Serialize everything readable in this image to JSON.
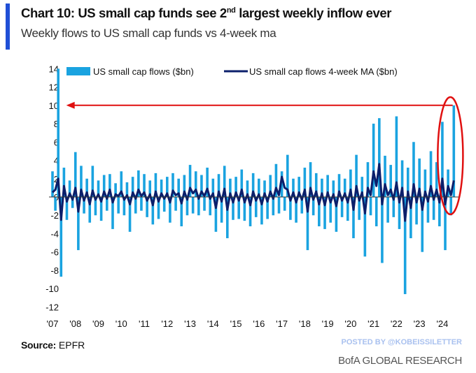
{
  "header": {
    "title_main": "Chart 10: US small cap funds see 2",
    "title_sup": "nd",
    "title_rest": " largest weekly inflow ever",
    "subtitle": "Weekly flows to US small cap funds vs 4-week ma"
  },
  "footer": {
    "source_label": "Source:",
    "source_value": " EPFR",
    "posted_by": "POSTED BY @KOBEISSILETTER",
    "brand": "BofA GLOBAL RESEARCH"
  },
  "colors": {
    "flows": "#1aa3e0",
    "ma": "#0b1f6b",
    "annotation": "#e01010",
    "accent": "#1f4fd6"
  },
  "chart_data": {
    "type": "bar",
    "title": "Chart 10: US small cap funds see 2nd largest weekly inflow ever",
    "subtitle": "Weekly flows to US small cap funds vs 4-week ma",
    "xlabel": "",
    "ylabel": "",
    "ylim": [
      -12,
      14
    ],
    "yticks": [
      14,
      12,
      10,
      8,
      6,
      4,
      2,
      0,
      -2,
      -4,
      -6,
      -8,
      -10,
      -12
    ],
    "xticks": [
      "'07",
      "'08",
      "'09",
      "'10",
      "'11",
      "'12",
      "'13",
      "'14",
      "'15",
      "'16",
      "'17",
      "'18",
      "'19",
      "'20",
      "'21",
      "'22",
      "'23",
      "'24"
    ],
    "xrange": [
      2007,
      2024.6
    ],
    "grid": false,
    "legend": "top",
    "sample_start": 2007.0,
    "sample_step_years": 0.125,
    "series": [
      {
        "name": "US small cap flows ($bn)",
        "type": "bar",
        "values": [
          2.8,
          -1.5,
          14.0,
          -8.7,
          3.2,
          -2.5,
          1.8,
          -1.2,
          4.9,
          -5.8,
          3.4,
          -1.8,
          2.0,
          -2.8,
          3.4,
          -2.0,
          1.8,
          -2.6,
          2.4,
          -1.5,
          2.5,
          -3.5,
          1.5,
          -1.8,
          2.8,
          -2.0,
          1.6,
          -3.8,
          2.2,
          -1.8,
          2.9,
          -1.5,
          2.5,
          -2.2,
          1.8,
          -3.0,
          2.6,
          -2.4,
          1.9,
          -1.6,
          2.2,
          -2.8,
          2.6,
          -1.5,
          2.0,
          -3.2,
          2.4,
          -2.0,
          3.5,
          -1.8,
          2.8,
          -2.0,
          2.4,
          -1.5,
          3.2,
          -2.0,
          2.0,
          -3.8,
          2.5,
          -2.8,
          3.4,
          -4.5,
          2.0,
          -2.5,
          2.2,
          -2.4,
          3.0,
          -2.6,
          1.8,
          -3.2,
          2.6,
          -2.2,
          2.0,
          -3.0,
          1.8,
          -2.4,
          2.4,
          -2.0,
          3.6,
          -1.8,
          2.8,
          -1.5,
          4.6,
          -2.5,
          2.0,
          -2.8,
          2.2,
          -1.8,
          3.2,
          -5.8,
          3.8,
          -2.0,
          2.6,
          -3.2,
          2.0,
          -3.5,
          2.4,
          -2.8,
          1.8,
          -3.8,
          2.5,
          -2.2,
          2.0,
          -2.6,
          3.0,
          -4.5,
          4.6,
          -2.5,
          2.2,
          -6.5,
          3.8,
          -2.0,
          8.0,
          -3.2,
          8.6,
          -7.2,
          4.5,
          -2.8,
          3.5,
          -2.2,
          8.8,
          -3.5,
          4.0,
          -10.6,
          3.2,
          -4.5,
          6.0,
          -3.0,
          4.2,
          -6.0,
          3.0,
          -2.8,
          5.0,
          -2.5,
          3.8,
          -3.2,
          8.2,
          -5.8,
          3.0,
          -2.0,
          10.0
        ]
      },
      {
        "name": "US small cap flows 4-week MA ($bn)",
        "type": "line",
        "values": [
          0.5,
          0.8,
          2.0,
          -2.5,
          1.2,
          -0.5,
          0.4,
          -0.3,
          1.0,
          -1.6,
          0.8,
          -0.4,
          0.5,
          -0.8,
          0.7,
          -0.3,
          0.3,
          -0.5,
          0.6,
          -0.2,
          0.8,
          -0.6,
          0.3,
          0.1,
          0.6,
          -0.3,
          0.2,
          -0.8,
          0.5,
          -0.2,
          0.8,
          0.1,
          0.5,
          -0.4,
          0.3,
          -0.9,
          0.6,
          -0.5,
          0.4,
          -0.2,
          0.4,
          -0.6,
          0.7,
          0.2,
          0.4,
          -0.7,
          0.6,
          -0.3,
          1.0,
          0.4,
          0.8,
          -0.2,
          0.6,
          0.1,
          0.9,
          -0.2,
          0.4,
          -1.2,
          0.6,
          -0.5,
          0.9,
          -1.4,
          0.4,
          -0.6,
          0.5,
          -0.4,
          0.8,
          -0.6,
          0.3,
          -0.9,
          0.6,
          -0.4,
          0.3,
          -0.8,
          0.4,
          -0.5,
          0.6,
          -0.2,
          1.0,
          0.2,
          2.2,
          1.0,
          0.8,
          -0.4,
          0.5,
          -0.6,
          0.5,
          -0.3,
          0.8,
          -1.6,
          1.0,
          -0.3,
          0.6,
          -0.8,
          0.4,
          -0.9,
          0.5,
          -0.6,
          0.3,
          -1.0,
          0.6,
          -0.4,
          0.4,
          -0.6,
          0.8,
          -1.4,
          1.2,
          -0.4,
          0.5,
          -1.8,
          1.0,
          0.2,
          2.8,
          1.2,
          3.6,
          -0.8,
          1.4,
          0.2,
          0.8,
          -0.3,
          1.6,
          -0.6,
          1.0,
          -2.6,
          0.6,
          -1.2,
          1.4,
          -0.6,
          0.9,
          -1.4,
          0.6,
          -0.5,
          1.2,
          -0.3,
          0.8,
          -0.6,
          2.0,
          -0.8,
          1.2,
          0.2,
          1.8
        ]
      }
    ],
    "annotations": [
      {
        "type": "arrow",
        "y": 10,
        "x_from": 2024.45,
        "x_to": 2007.6
      },
      {
        "type": "ellipse",
        "x_center": 2024.35,
        "y_center": 4.5,
        "x_halfwidth": 0.55,
        "y_halfheight": 6.4
      }
    ]
  }
}
